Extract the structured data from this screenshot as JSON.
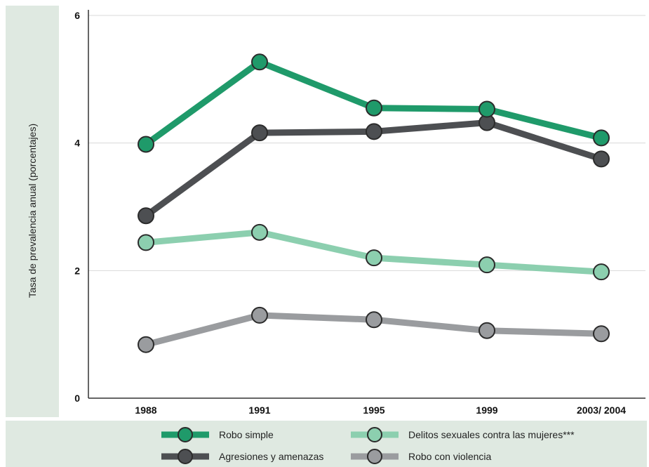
{
  "chart_data": {
    "type": "line",
    "ylabel": "Tasa de prevalencia anual (porcentajes)",
    "xlabel": "",
    "categories": [
      "1988",
      "1991",
      "1995",
      "1999",
      "2003/ 2004"
    ],
    "ylim": [
      0,
      6
    ],
    "yticks": [
      "0",
      "2",
      "4",
      "6"
    ],
    "grid": true,
    "legend_position": "bottom",
    "series": [
      {
        "name": "Robo simple",
        "color": "#1f9a6a",
        "values": [
          3.98,
          5.27,
          4.55,
          4.53,
          4.08
        ]
      },
      {
        "name": "Agresiones y amenazas",
        "color": "#4d4f52",
        "values": [
          2.86,
          4.16,
          4.18,
          4.32,
          3.75
        ]
      },
      {
        "name": "Delitos sexuales contra las mujeres***",
        "color": "#8ccfaf",
        "values": [
          2.44,
          2.6,
          2.2,
          2.09,
          1.98
        ]
      },
      {
        "name": "Robo con violencia",
        "color": "#9a9c9f",
        "values": [
          0.84,
          1.3,
          1.23,
          1.06,
          1.01
        ]
      }
    ]
  }
}
